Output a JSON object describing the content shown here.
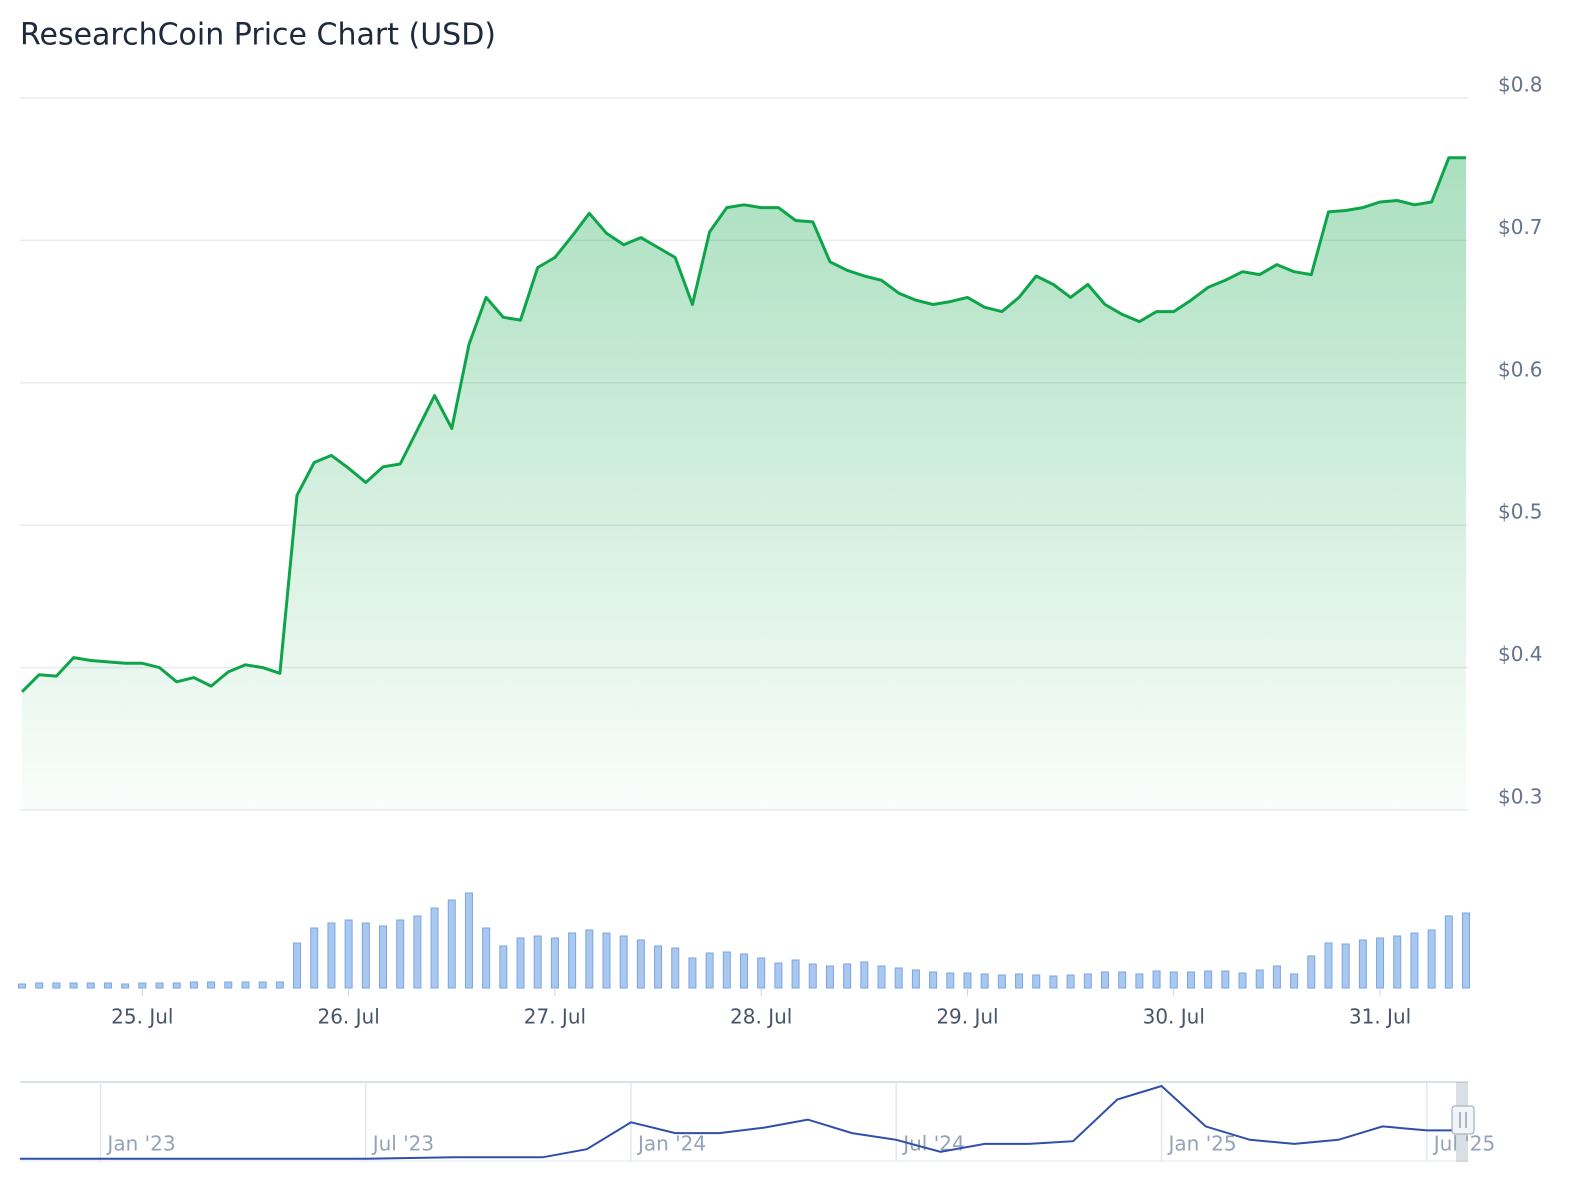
{
  "chart_data": [
    {
      "type": "area",
      "title": "ResearchCoin Price Chart (USD)",
      "categories": [
        null,
        null,
        null,
        null,
        null,
        null,
        null,
        "25. Jul",
        null,
        null,
        null,
        null,
        null,
        null,
        null,
        null,
        null,
        null,
        null,
        "26. Jul",
        null,
        null,
        null,
        null,
        null,
        null,
        null,
        null,
        null,
        null,
        null,
        "27. Jul",
        null,
        null,
        null,
        null,
        null,
        null,
        null,
        null,
        null,
        null,
        null,
        "28. Jul",
        null,
        null,
        null,
        null,
        null,
        null,
        null,
        null,
        null,
        null,
        null,
        "29. Jul",
        null,
        null,
        null,
        null,
        null,
        null,
        null,
        null,
        null,
        null,
        null,
        "30. Jul",
        null,
        null,
        null,
        null,
        null,
        null,
        null,
        null,
        null,
        null,
        null,
        "31. Jul",
        null,
        null,
        null,
        null,
        null
      ],
      "values": [
        0.383,
        0.395,
        0.394,
        0.407,
        0.405,
        0.404,
        0.403,
        0.403,
        0.4,
        0.39,
        0.393,
        0.387,
        0.397,
        0.402,
        0.4,
        0.396,
        0.521,
        0.544,
        0.549,
        0.54,
        0.53,
        0.541,
        0.543,
        0.567,
        0.591,
        0.568,
        0.627,
        0.66,
        0.646,
        0.644,
        0.681,
        0.688,
        0.703,
        0.719,
        0.705,
        0.697,
        0.702,
        0.695,
        0.688,
        0.655,
        0.706,
        0.723,
        0.725,
        0.723,
        0.723,
        0.714,
        0.713,
        0.685,
        0.679,
        0.675,
        0.672,
        0.663,
        0.658,
        0.655,
        0.657,
        0.66,
        0.653,
        0.65,
        0.66,
        0.675,
        0.669,
        0.66,
        0.669,
        0.655,
        0.648,
        0.643,
        0.65,
        0.65,
        0.658,
        0.667,
        0.672,
        0.678,
        0.676,
        0.683,
        0.678,
        0.676,
        0.72,
        0.721,
        0.723,
        0.727,
        0.728,
        0.725,
        0.727,
        0.758,
        0.758
      ],
      "volume": [
        4,
        5,
        5,
        5,
        5,
        5,
        4,
        5,
        5,
        5,
        6,
        6,
        6,
        6,
        6,
        6,
        45,
        60,
        65,
        68,
        65,
        62,
        68,
        72,
        80,
        88,
        95,
        60,
        42,
        50,
        52,
        50,
        55,
        58,
        55,
        52,
        48,
        42,
        40,
        30,
        35,
        36,
        34,
        30,
        25,
        28,
        24,
        22,
        24,
        26,
        22,
        20,
        18,
        16,
        15,
        15,
        14,
        13,
        14,
        13,
        12,
        13,
        14,
        16,
        16,
        14,
        17,
        16,
        16,
        17,
        17,
        15,
        18,
        22,
        14,
        32,
        45,
        44,
        48,
        50,
        52,
        55,
        58,
        72,
        75
      ],
      "color": "#0ea54a",
      "volume_color": "#a9c8f0",
      "ylim": [
        0.3,
        0.8
      ],
      "yticks": [
        {
          "value": 0.3,
          "label": "$0.3"
        },
        {
          "value": 0.4,
          "label": "$0.4"
        },
        {
          "value": 0.5,
          "label": "$0.5"
        },
        {
          "value": 0.6,
          "label": "$0.6"
        },
        {
          "value": 0.7,
          "label": "$0.7"
        },
        {
          "value": 0.8,
          "label": "$0.8"
        }
      ],
      "grid": true
    },
    {
      "type": "line",
      "categories": [
        null,
        null,
        "Jan '23",
        null,
        null,
        null,
        null,
        null,
        "Jul '23",
        null,
        null,
        null,
        null,
        null,
        "Jan '24",
        null,
        null,
        null,
        null,
        null,
        "Jul '24",
        null,
        null,
        null,
        null,
        null,
        "Jan '25",
        null,
        null,
        null,
        null,
        null,
        "Jul '25",
        null
      ],
      "values": [
        1,
        1,
        1,
        1,
        1,
        1,
        1,
        1,
        1,
        1.5,
        2,
        2,
        2,
        8,
        28,
        20,
        20,
        24,
        30,
        20,
        15,
        6,
        12,
        12,
        14,
        45,
        55,
        25,
        15,
        12,
        15,
        25,
        22,
        22
      ],
      "color": "#2f4fa8"
    }
  ]
}
